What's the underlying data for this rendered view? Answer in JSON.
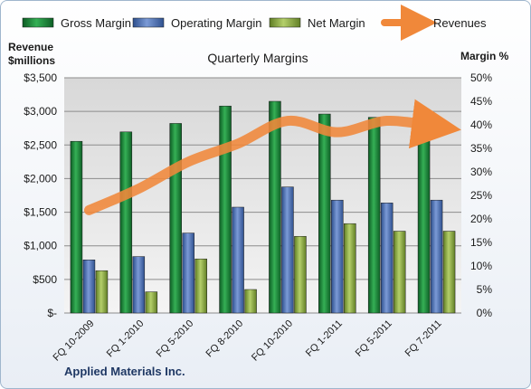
{
  "chart_data": {
    "type": "bar",
    "title": "Quarterly Margins",
    "company": "Applied Materials Inc.",
    "left_axis_label": [
      "Revenue",
      "$millions"
    ],
    "right_axis_label": "Margin %",
    "categories": [
      "FQ 10-2009",
      "FQ 1-2010",
      "FQ 5-2010",
      "FQ 8-2010",
      "FQ 10-2010",
      "FQ 1-2011",
      "FQ 5-2011",
      "FQ 7-2011"
    ],
    "left_ticks": [
      "$-",
      "$500",
      "$1,000",
      "$1,500",
      "$2,000",
      "$2,500",
      "$3,000",
      "$3,500"
    ],
    "right_ticks": [
      "0%",
      "5%",
      "10%",
      "15%",
      "20%",
      "25%",
      "30%",
      "35%",
      "40%",
      "45%",
      "50%"
    ],
    "left_ylim": [
      0,
      3500
    ],
    "right_ylim": [
      0,
      50
    ],
    "series": [
      {
        "name": "Gross Margin",
        "axis": "right",
        "color": "#1f8a3b",
        "values": [
          36.5,
          38.5,
          40.3,
          44.0,
          45.0,
          42.3,
          41.6,
          42.5
        ]
      },
      {
        "name": "Operating Margin",
        "axis": "right",
        "color": "#4a72b8",
        "values": [
          11.3,
          12.0,
          17.0,
          22.5,
          26.8,
          24.0,
          23.4,
          24.0
        ]
      },
      {
        "name": "Net Margin",
        "axis": "right",
        "color": "#92b14a",
        "values": [
          9.0,
          4.5,
          11.5,
          5.0,
          16.3,
          19.0,
          17.4,
          17.4
        ]
      },
      {
        "name": "Revenues",
        "axis": "left",
        "color": "#f0883a",
        "type": "line",
        "values": [
          1530,
          1850,
          2250,
          2520,
          2860,
          2690,
          2860,
          2770
        ]
      }
    ]
  }
}
